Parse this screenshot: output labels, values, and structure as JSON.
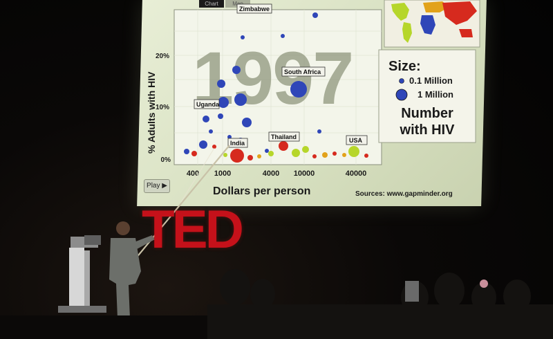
{
  "slide": {
    "tabs": [
      "Chart",
      "Map"
    ],
    "year": "1997",
    "y_axis_label": "% Adults with HIV",
    "y_ticks": [
      "20%",
      "10%",
      "0%"
    ],
    "x_axis_label": "Dollars per person",
    "x_ticks": [
      "400",
      "1000",
      "4000",
      "10000",
      "40000"
    ],
    "country_labels": [
      "Zimbabwe",
      "South Africa",
      "Uganda",
      "India",
      "Thailand",
      "USA"
    ],
    "legend": {
      "title": "Size:",
      "small": "0.1 Million",
      "large": "1 Million",
      "caption_line1": "Number",
      "caption_line2": "with HIV"
    },
    "sources": "Sources: www.gapminder.org",
    "play_label": "Play"
  },
  "stage": {
    "logo": "TED"
  },
  "colors": {
    "africa": "#2f46b8",
    "asia": "#d62a1e",
    "americas": "#b6d62a",
    "logo": "#c5111a"
  }
}
